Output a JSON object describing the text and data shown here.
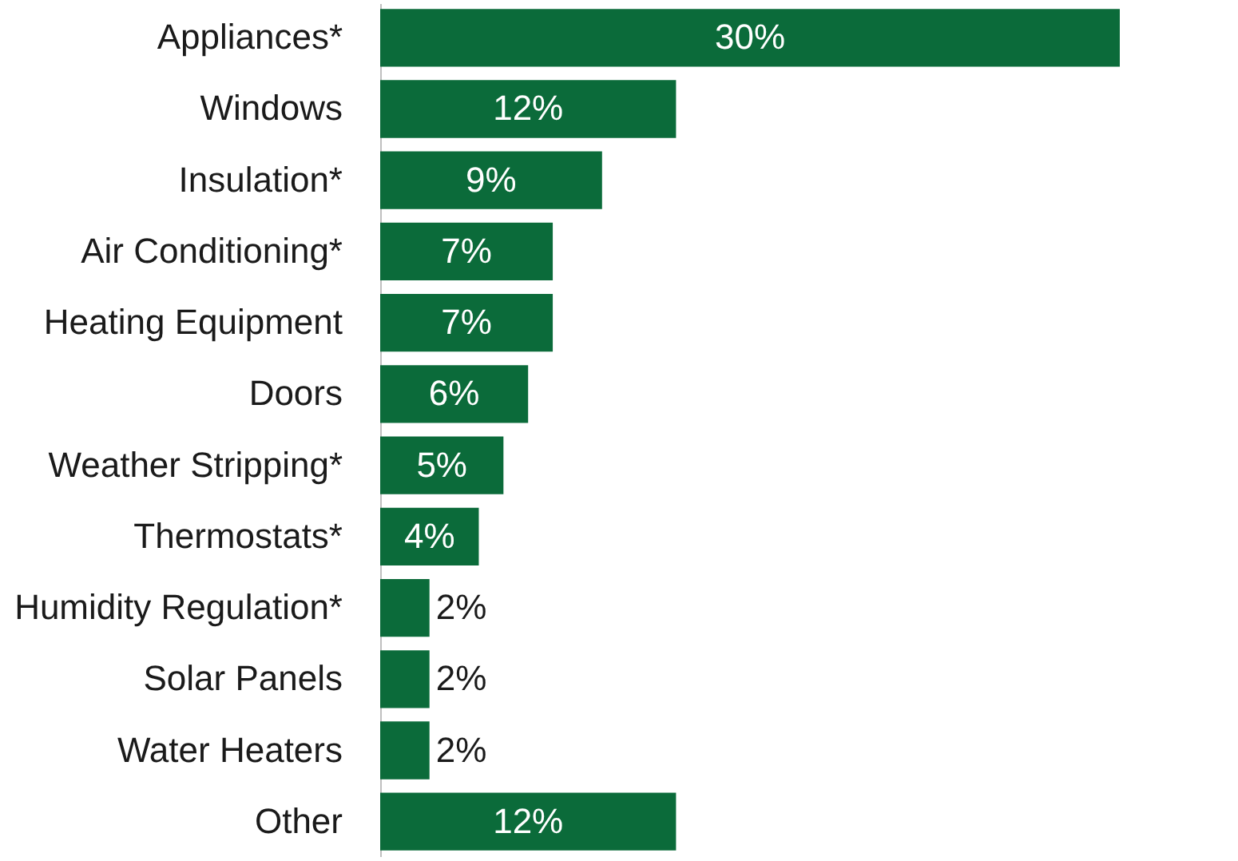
{
  "chart_data": {
    "type": "bar",
    "orientation": "horizontal",
    "categories": [
      "Appliances*",
      "Windows",
      "Insulation*",
      "Air Conditioning*",
      "Heating Equipment",
      "Doors",
      "Weather Stripping*",
      "Thermostats*",
      "Humidity Regulation*",
      "Solar Panels",
      "Water Heaters",
      "Other"
    ],
    "values": [
      30,
      12,
      9,
      7,
      7,
      6,
      5,
      4,
      2,
      2,
      2,
      12
    ],
    "value_labels": [
      "30%",
      "12%",
      "9%",
      "7%",
      "7%",
      "6%",
      "5%",
      "4%",
      "2%",
      "2%",
      "2%",
      "12%"
    ],
    "color": "#0b6b3a",
    "grid": false
  }
}
